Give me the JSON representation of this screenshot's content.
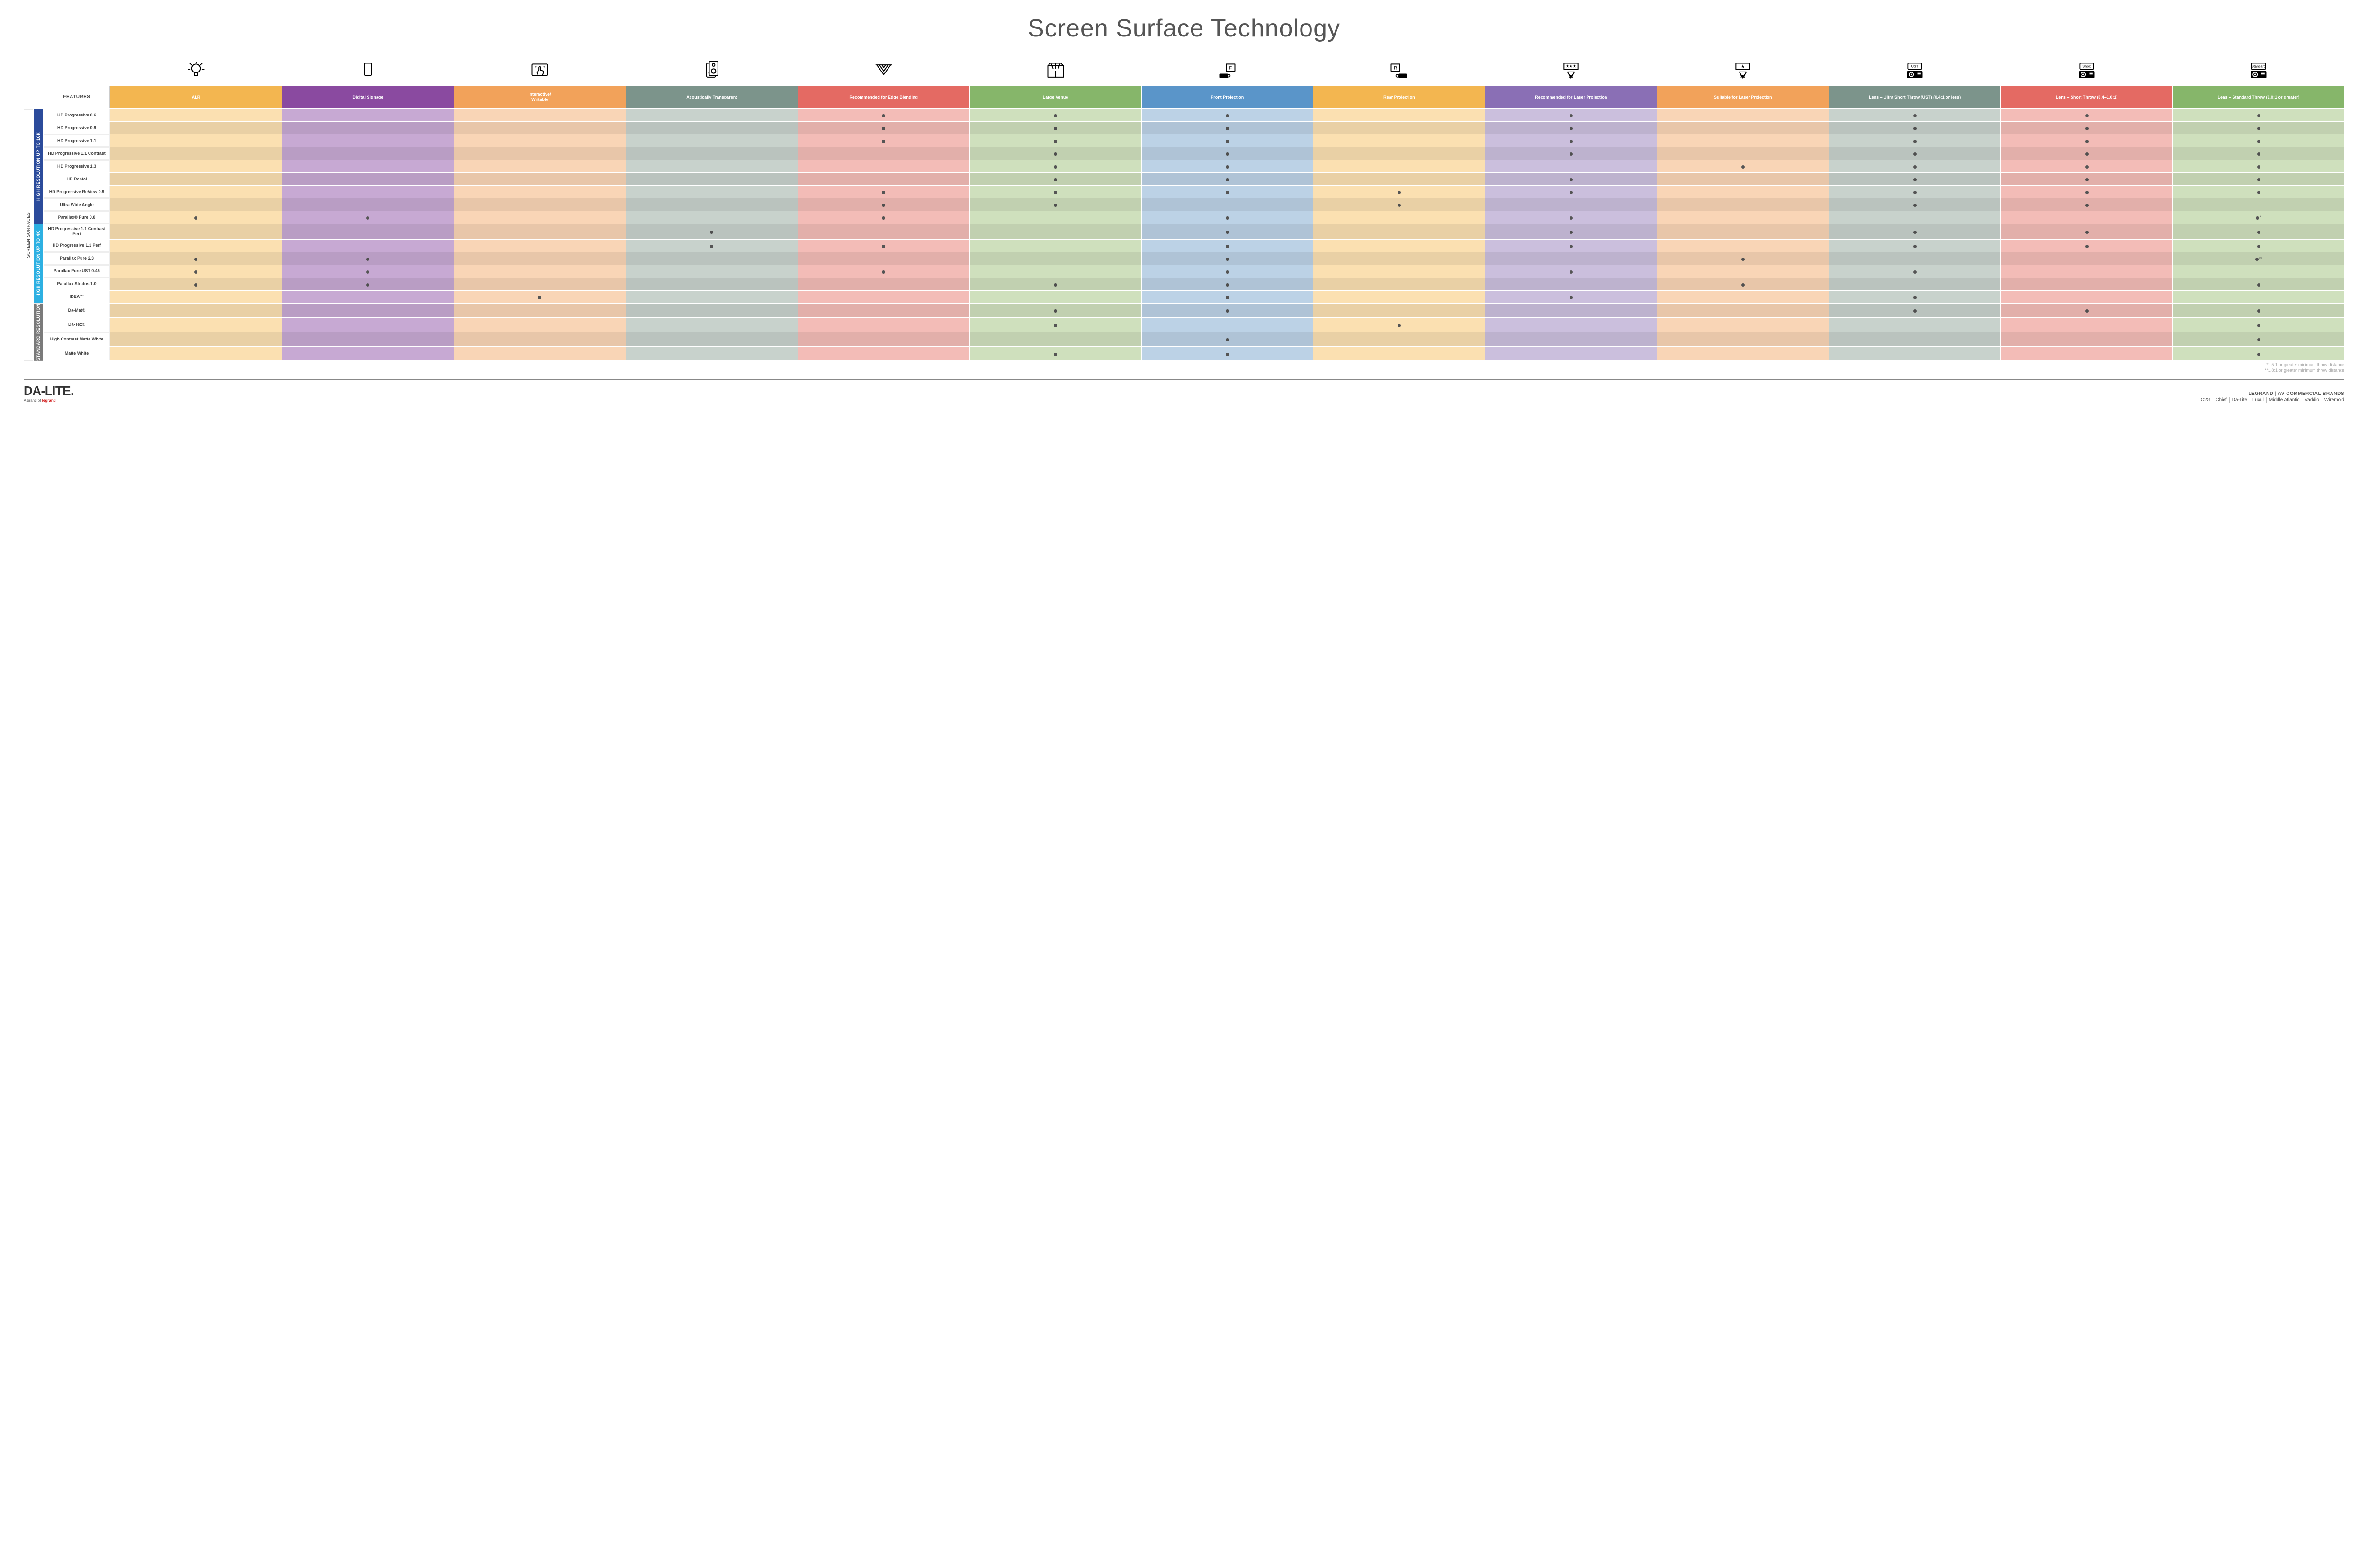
{
  "title": "Screen Surface Technology",
  "features_header": "FEATURES",
  "side_label": "SCREEN SURFACES",
  "columns": [
    {
      "key": "alr",
      "label": "ALR",
      "color": "#f3b650",
      "icon": "bulb"
    },
    {
      "key": "signage",
      "label": "Digital Signage",
      "color": "#8a4aa0",
      "icon": "signage"
    },
    {
      "key": "writable",
      "label": "Interactive/\nWritable",
      "color": "#f2a25a",
      "icon": "touch"
    },
    {
      "key": "acoustic",
      "label": "Acoustically Transparent",
      "color": "#7c948b",
      "icon": "speaker"
    },
    {
      "key": "edge",
      "label": "Recommended for Edge Blending",
      "color": "#e46a63",
      "icon": "edge"
    },
    {
      "key": "venue",
      "label": "Large Venue",
      "color": "#86b66a",
      "icon": "venue"
    },
    {
      "key": "front",
      "label": "Front Projection",
      "color": "#5a95c9",
      "icon": "front"
    },
    {
      "key": "rear",
      "label": "Rear Projection",
      "color": "#f3b650",
      "icon": "rear"
    },
    {
      "key": "laser_r",
      "label": "Recommended for Laser Projection",
      "color": "#8a6fb5",
      "icon": "laser3"
    },
    {
      "key": "laser_s",
      "label": "Suitable for Laser Projection",
      "color": "#f2a25a",
      "icon": "laser1"
    },
    {
      "key": "ust",
      "label": "Lens – Ultra Short Throw (UST) (0.4:1 or less)",
      "color": "#7c948b",
      "icon": "proj_ust"
    },
    {
      "key": "short",
      "label": "Lens – Short Throw (0.4–1.0:1)",
      "color": "#e46a63",
      "icon": "proj_short"
    },
    {
      "key": "std",
      "label": "Lens – Standard Throw (1.0:1 or greater)",
      "color": "#86b66a",
      "icon": "proj_std"
    }
  ],
  "cell_tints": {
    "alr": "#fbe0b1",
    "signage": "#c7a9d3",
    "writable": "#f9d5b6",
    "acoustic": "#c8d2cc",
    "edge": "#f3bcb7",
    "venue": "#cfe0bd",
    "front": "#bcd2e6",
    "rear": "#fbe0b1",
    "laser_r": "#cbbfdd",
    "laser_s": "#f9d5b6",
    "ust": "#c8d2cc",
    "short": "#f3bcb7",
    "std": "#cfe0bd"
  },
  "categories": [
    {
      "key": "c16k",
      "label": "HIGH RESOLUTION UP TO 16K",
      "class": "cat-16k",
      "rows": [
        {
          "label": "HD Progressive 0.6",
          "dots": {
            "edge": 1,
            "venue": 1,
            "front": 1,
            "laser_r": 1,
            "ust": 1,
            "short": 1,
            "std": 1
          }
        },
        {
          "label": "HD Progressive 0.9",
          "dots": {
            "edge": 1,
            "venue": 1,
            "front": 1,
            "laser_r": 1,
            "ust": 1,
            "short": 1,
            "std": 1
          }
        },
        {
          "label": "HD Progressive 1.1",
          "dots": {
            "edge": 1,
            "venue": 1,
            "front": 1,
            "laser_r": 1,
            "ust": 1,
            "short": 1,
            "std": 1
          }
        },
        {
          "label": "HD Progressive 1.1 Contrast",
          "dots": {
            "venue": 1,
            "front": 1,
            "laser_r": 1,
            "ust": 1,
            "short": 1,
            "std": 1
          }
        },
        {
          "label": "HD Progressive 1.3",
          "dots": {
            "venue": 1,
            "front": 1,
            "laser_s": 1,
            "ust": 1,
            "short": 1,
            "std": 1
          }
        },
        {
          "label": "HD Rental",
          "dots": {
            "venue": 1,
            "front": 1,
            "laser_r": 1,
            "ust": 1,
            "short": 1,
            "std": 1
          }
        },
        {
          "label": "HD Progressive ReView 0.9",
          "dots": {
            "edge": 1,
            "venue": 1,
            "front": 1,
            "rear": 1,
            "laser_r": 1,
            "ust": 1,
            "short": 1,
            "std": 1
          }
        },
        {
          "label": "Ultra Wide Angle",
          "dots": {
            "edge": 1,
            "venue": 1,
            "rear": 1,
            "ust": 1,
            "short": 1
          }
        },
        {
          "label": "Parallax® Pure 0.8",
          "dots": {
            "alr": 1,
            "signage": 1,
            "edge": 1,
            "front": 1,
            "laser_r": 1,
            "std": "*"
          }
        }
      ]
    },
    {
      "key": "c4k",
      "label": "HIGH RESOLUTION UP TO 4K",
      "class": "cat-4k",
      "rows": [
        {
          "label": "HD Progressive 1.1 Contrast Perf",
          "dots": {
            "acoustic": 1,
            "front": 1,
            "laser_r": 1,
            "ust": 1,
            "short": 1,
            "std": 1
          }
        },
        {
          "label": "HD Progressive 1.1 Perf",
          "dots": {
            "acoustic": 1,
            "edge": 1,
            "front": 1,
            "laser_r": 1,
            "ust": 1,
            "short": 1,
            "std": 1
          }
        },
        {
          "label": "Parallax Pure 2.3",
          "dots": {
            "alr": 1,
            "signage": 1,
            "front": 1,
            "laser_s": 1,
            "std": "**"
          }
        },
        {
          "label": "Parallax Pure UST 0.45",
          "dots": {
            "alr": 1,
            "signage": 1,
            "edge": 1,
            "front": 1,
            "laser_r": 1,
            "ust": 1
          }
        },
        {
          "label": "Parallax Stratos 1.0",
          "dots": {
            "alr": 1,
            "signage": 1,
            "venue": 1,
            "front": 1,
            "laser_s": 1,
            "std": 1
          }
        },
        {
          "label": "IDEA™",
          "dots": {
            "writable": 1,
            "front": 1,
            "laser_r": 1,
            "ust": 1
          }
        }
      ]
    },
    {
      "key": "cstd",
      "label": "STANDARD RESOLUTION",
      "class": "cat-std",
      "rows": [
        {
          "label": "Da-Mat®",
          "dots": {
            "venue": 1,
            "front": 1,
            "ust": 1,
            "short": 1,
            "std": 1
          }
        },
        {
          "label": "Da-Tex®",
          "dots": {
            "venue": 1,
            "rear": 1,
            "std": 1
          }
        },
        {
          "label": "High Contrast Matte White",
          "dots": {
            "front": 1,
            "std": 1
          }
        },
        {
          "label": "Matte White",
          "dots": {
            "venue": 1,
            "front": 1,
            "std": 1
          }
        }
      ]
    }
  ],
  "footnotes": [
    "*1.5:1 or greater minimum throw distance",
    "**1.8:1 or greater minimum throw distance"
  ],
  "footer": {
    "logo_main": "DA-LITE.",
    "logo_sub_prefix": "A brand of ",
    "logo_sub_brand": "legrand",
    "brands_title": "LEGRAND | AV COMMERCIAL BRANDS",
    "brands_list": [
      "C2G",
      "Chief",
      "Da-Lite",
      "Luxul",
      "Middle Atlantic",
      "Vaddio",
      "Wiremold"
    ]
  }
}
